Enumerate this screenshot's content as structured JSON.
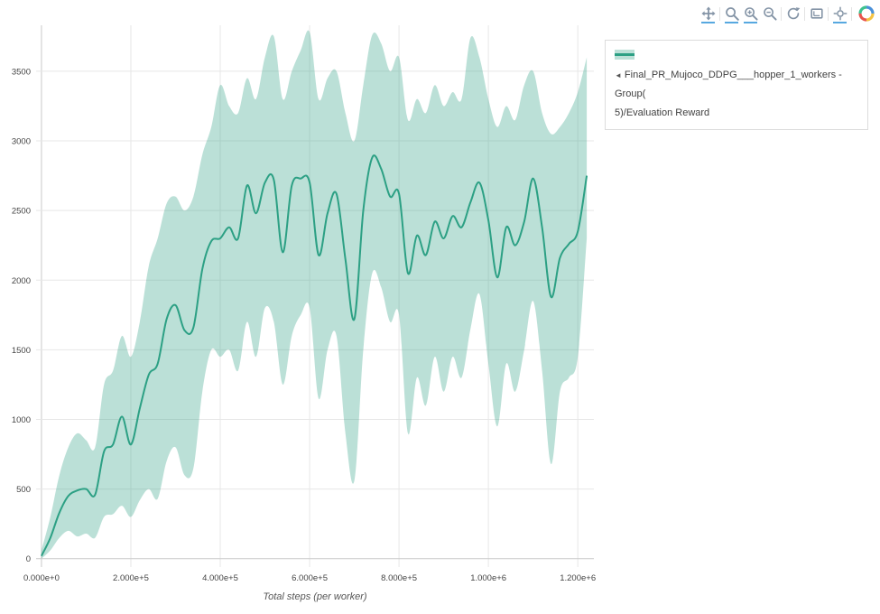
{
  "colors": {
    "line": "#2ca084",
    "band": "#2ca084",
    "band_opacity": 0.32,
    "grid": "#e7e7e7",
    "zeroline": "#c9c9c9",
    "tick_text": "#444444",
    "modebar_icon": "#8494a6",
    "modebar_active": "#57a8e0",
    "legend_border": "#dcdcdc"
  },
  "modebar": {
    "icons": [
      {
        "name": "pan",
        "active": true
      },
      {
        "name": "box-zoom",
        "active": true
      },
      {
        "name": "zoom-in",
        "active": true
      },
      {
        "name": "zoom-out",
        "active": false
      },
      {
        "name": "autoscale",
        "active": false
      },
      {
        "name": "reset-axes",
        "active": false
      },
      {
        "name": "hover-closest",
        "active": true
      }
    ],
    "groups": [
      [
        0
      ],
      [
        1,
        2,
        3
      ],
      [
        4
      ],
      [
        5
      ],
      [
        6
      ]
    ]
  },
  "legend": {
    "toggle_arrow": "◄",
    "line1": "Final_PR_Mujoco_DDPG___hopper_1_workers - Group(",
    "line2": "5)/Evaluation Reward",
    "full_label": "Final_PR_Mujoco_DDPG___hopper_1_workers - Group(5)/Evaluation Reward"
  },
  "chart_data": {
    "type": "line",
    "title": "",
    "xlabel": "Total steps (per worker)",
    "ylabel": "",
    "xlim": [
      -12000,
      1236000
    ],
    "ylim": [
      -60,
      3830
    ],
    "grid": true,
    "legend_position": "top-right-outside",
    "x_ticks": [
      {
        "v": 0,
        "label": "0.000e+0"
      },
      {
        "v": 200000,
        "label": "2.000e+5"
      },
      {
        "v": 400000,
        "label": "4.000e+5"
      },
      {
        "v": 600000,
        "label": "6.000e+5"
      },
      {
        "v": 800000,
        "label": "8.000e+5"
      },
      {
        "v": 1000000,
        "label": "1.000e+6"
      },
      {
        "v": 1200000,
        "label": "1.200e+6"
      }
    ],
    "y_ticks": [
      0,
      500,
      1000,
      1500,
      2000,
      2500,
      3000,
      3500
    ],
    "series": [
      {
        "name": "Final_PR_Mujoco_DDPG___hopper_1_workers - Group(5)/Evaluation Reward",
        "x": [
          0,
          20000,
          40000,
          60000,
          80000,
          100000,
          120000,
          140000,
          160000,
          180000,
          200000,
          220000,
          240000,
          260000,
          280000,
          300000,
          320000,
          340000,
          360000,
          380000,
          400000,
          420000,
          440000,
          460000,
          480000,
          500000,
          520000,
          540000,
          560000,
          580000,
          600000,
          620000,
          640000,
          660000,
          680000,
          700000,
          720000,
          740000,
          760000,
          780000,
          800000,
          820000,
          840000,
          860000,
          880000,
          900000,
          920000,
          940000,
          960000,
          980000,
          1000000,
          1020000,
          1040000,
          1060000,
          1080000,
          1100000,
          1120000,
          1140000,
          1160000,
          1180000,
          1200000,
          1220000
        ],
        "mean": [
          20,
          150,
          330,
          450,
          490,
          500,
          460,
          770,
          820,
          1020,
          820,
          1080,
          1320,
          1400,
          1720,
          1820,
          1640,
          1660,
          2080,
          2280,
          2300,
          2380,
          2300,
          2680,
          2480,
          2700,
          2720,
          2200,
          2680,
          2730,
          2700,
          2180,
          2480,
          2620,
          2150,
          1720,
          2500,
          2880,
          2800,
          2600,
          2620,
          2050,
          2320,
          2180,
          2420,
          2300,
          2460,
          2380,
          2560,
          2700,
          2430,
          2020,
          2380,
          2250,
          2420,
          2730,
          2380,
          1880,
          2160,
          2260,
          2350,
          2750
        ],
        "lower": [
          0,
          60,
          150,
          200,
          160,
          180,
          150,
          300,
          320,
          380,
          300,
          420,
          500,
          430,
          700,
          800,
          600,
          650,
          1200,
          1500,
          1450,
          1500,
          1350,
          1700,
          1450,
          1800,
          1700,
          1250,
          1600,
          1750,
          1800,
          1150,
          1500,
          1600,
          900,
          560,
          1500,
          2050,
          1950,
          1700,
          1750,
          900,
          1300,
          1100,
          1450,
          1200,
          1450,
          1300,
          1650,
          1900,
          1400,
          950,
          1400,
          1200,
          1500,
          1850,
          1350,
          680,
          1200,
          1300,
          1450,
          2300
        ],
        "upper": [
          60,
          300,
          600,
          800,
          900,
          850,
          800,
          1250,
          1350,
          1600,
          1450,
          1700,
          2100,
          2300,
          2550,
          2600,
          2500,
          2600,
          2900,
          3100,
          3400,
          3250,
          3200,
          3450,
          3300,
          3600,
          3750,
          3300,
          3500,
          3650,
          3780,
          3300,
          3450,
          3500,
          3200,
          3000,
          3400,
          3760,
          3700,
          3500,
          3600,
          3150,
          3300,
          3200,
          3400,
          3250,
          3350,
          3300,
          3740,
          3600,
          3300,
          3100,
          3250,
          3150,
          3400,
          3500,
          3200,
          3050,
          3100,
          3200,
          3350,
          3600
        ]
      }
    ]
  }
}
